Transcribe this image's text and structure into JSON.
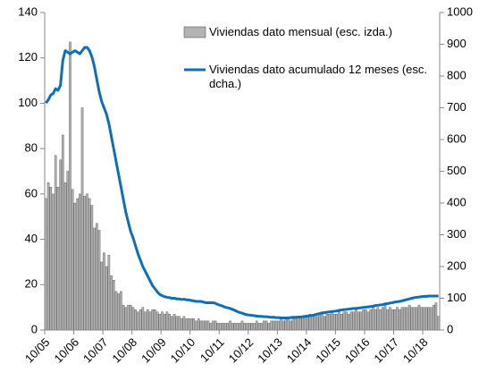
{
  "chart_data": {
    "type": "bar_line",
    "categories": [
      "10/05",
      null,
      null,
      null,
      null,
      null,
      null,
      null,
      null,
      null,
      null,
      null,
      "10/06",
      null,
      null,
      null,
      null,
      null,
      null,
      null,
      null,
      null,
      null,
      null,
      "10/07",
      null,
      null,
      null,
      null,
      null,
      null,
      null,
      null,
      null,
      null,
      null,
      "10/08",
      null,
      null,
      null,
      null,
      null,
      null,
      null,
      null,
      null,
      null,
      null,
      "10/09",
      null,
      null,
      null,
      null,
      null,
      null,
      null,
      null,
      null,
      null,
      null,
      "10/10",
      null,
      null,
      null,
      null,
      null,
      null,
      null,
      null,
      null,
      null,
      null,
      "10/11",
      null,
      null,
      null,
      null,
      null,
      null,
      null,
      null,
      null,
      null,
      null,
      "10/12",
      null,
      null,
      null,
      null,
      null,
      null,
      null,
      null,
      null,
      null,
      null,
      "10/13",
      null,
      null,
      null,
      null,
      null,
      null,
      null,
      null,
      null,
      null,
      null,
      "10/14",
      null,
      null,
      null,
      null,
      null,
      null,
      null,
      null,
      null,
      null,
      null,
      "10/15",
      null,
      null,
      null,
      null,
      null,
      null,
      null,
      null,
      null,
      null,
      null,
      "10/16",
      null,
      null,
      null,
      null,
      null,
      null,
      null,
      null,
      null,
      null,
      null,
      "10/17",
      null,
      null,
      null,
      null,
      null,
      null,
      null,
      null,
      null,
      null,
      null,
      "10/18",
      null,
      null,
      null,
      null,
      null,
      null
    ],
    "series": [
      {
        "name": "Viviendas dato mensual (esc. izda.)",
        "kind": "bar",
        "color": "#b3b3b3",
        "values": [
          58,
          65,
          63,
          60,
          77,
          63,
          75,
          86,
          65,
          70,
          127,
          62,
          56,
          58,
          60,
          98,
          59,
          60,
          58,
          55,
          45,
          47,
          44,
          30,
          34,
          28,
          33,
          24,
          22,
          17,
          16,
          17,
          11,
          10,
          11,
          11,
          10,
          9,
          8,
          9,
          10,
          8,
          9,
          8,
          9,
          9,
          8,
          7,
          8,
          7,
          8,
          7,
          6,
          7,
          6,
          6,
          5,
          6,
          5,
          5,
          5,
          5,
          4,
          5,
          4,
          4,
          4,
          4,
          3,
          4,
          4,
          3,
          3,
          3,
          3,
          3,
          4,
          3,
          3,
          3,
          3,
          4,
          3,
          3,
          3,
          3,
          3,
          4,
          3,
          3,
          4,
          4,
          3,
          4,
          4,
          4,
          4,
          5,
          4,
          5,
          5,
          4,
          5,
          5,
          6,
          5,
          6,
          6,
          6,
          7,
          6,
          7,
          6,
          7,
          7,
          6,
          7,
          7,
          8,
          7,
          7,
          8,
          7,
          8,
          8,
          7,
          8,
          8,
          9,
          8,
          8,
          9,
          9,
          8,
          9,
          10,
          9,
          10,
          9,
          10,
          12,
          9,
          10,
          9,
          9,
          10,
          9,
          10,
          10,
          10,
          11,
          10,
          10,
          10,
          11,
          10,
          10,
          10,
          10,
          10,
          11,
          12,
          6
        ]
      },
      {
        "name": "Viviendas dato acumulado 12 meses (esc. dcha.)",
        "kind": "line",
        "axis": "y2",
        "color": "#0e6fb8",
        "values": [
          715,
          725,
          740,
          745,
          760,
          755,
          770,
          850,
          880,
          875,
          870,
          875,
          880,
          875,
          870,
          880,
          890,
          890,
          880,
          860,
          830,
          790,
          750,
          720,
          700,
          680,
          650,
          610,
          570,
          530,
          490,
          450,
          410,
          370,
          340,
          310,
          290,
          265,
          240,
          220,
          200,
          185,
          170,
          155,
          140,
          130,
          120,
          112,
          108,
          105,
          103,
          102,
          100,
          100,
          98,
          98,
          96,
          97,
          95,
          95,
          93,
          92,
          90,
          90,
          90,
          88,
          86,
          86,
          86,
          86,
          84,
          80,
          78,
          75,
          72,
          70,
          68,
          65,
          62,
          58,
          55,
          53,
          50,
          48,
          47,
          46,
          45,
          44,
          43,
          43,
          42,
          42,
          41,
          40,
          40,
          39,
          39,
          38,
          38,
          38,
          38,
          39,
          40,
          40,
          41,
          41,
          42,
          43,
          44,
          45,
          46,
          48,
          50,
          52,
          54,
          55,
          56,
          57,
          58,
          59,
          60,
          62,
          63,
          64,
          65,
          66,
          67,
          68,
          68,
          69,
          70,
          71,
          72,
          73,
          74,
          75,
          77,
          78,
          79,
          80,
          82,
          83,
          85,
          86,
          88,
          89,
          90,
          92,
          94,
          96,
          98,
          100,
          102,
          103,
          104,
          105,
          106,
          106,
          107,
          107,
          107,
          107,
          107
        ]
      }
    ],
    "ylim": [
      0,
      140
    ],
    "yticks": [
      0,
      20,
      40,
      60,
      80,
      100,
      120,
      140
    ],
    "y2lim": [
      0,
      1000
    ],
    "y2ticks": [
      0,
      100,
      200,
      300,
      400,
      500,
      600,
      700,
      800,
      900,
      1000
    ]
  }
}
